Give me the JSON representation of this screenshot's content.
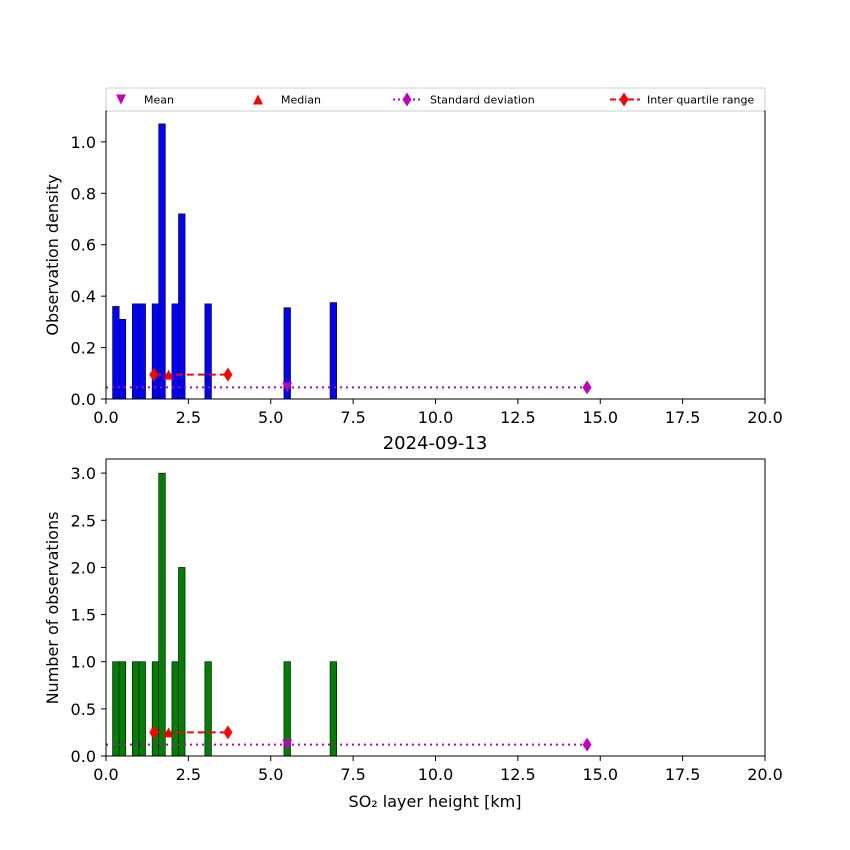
{
  "chart_data": [
    {
      "type": "bar",
      "title": "",
      "xlabel": "",
      "ylabel": "Observation density",
      "xlim": [
        0,
        20
      ],
      "ylim": [
        0,
        1.12
      ],
      "xticks": [
        0.0,
        2.5,
        5.0,
        7.5,
        10.0,
        12.5,
        15.0,
        17.5,
        20.0
      ],
      "xtick_labels": [
        "0.0",
        "2.5",
        "5.0",
        "7.5",
        "10.0",
        "12.5",
        "15.0",
        "17.5",
        "20.0"
      ],
      "yticks": [
        0.0,
        0.2,
        0.4,
        0.6,
        0.8,
        1.0
      ],
      "ytick_labels": [
        "0.0",
        "0.2",
        "0.4",
        "0.6",
        "0.8",
        "1.0"
      ],
      "bar_color": "#0000ff",
      "bar_width": 0.2,
      "bars": [
        {
          "x": 0.3,
          "y": 0.36
        },
        {
          "x": 0.5,
          "y": 0.31
        },
        {
          "x": 0.9,
          "y": 0.37
        },
        {
          "x": 1.1,
          "y": 0.37
        },
        {
          "x": 1.5,
          "y": 0.37
        },
        {
          "x": 1.7,
          "y": 1.07
        },
        {
          "x": 2.1,
          "y": 0.37
        },
        {
          "x": 2.3,
          "y": 0.72
        },
        {
          "x": 3.1,
          "y": 0.37
        },
        {
          "x": 5.5,
          "y": 0.355
        },
        {
          "x": 6.9,
          "y": 0.375
        }
      ],
      "stats": {
        "y_level": 0.045,
        "iqr_y_level": 0.095,
        "mean": 5.5,
        "median": 1.9,
        "std_range": [
          0.0,
          14.6
        ],
        "iqr_range": [
          1.45,
          3.7
        ]
      },
      "legend": {
        "placement": "top",
        "items": [
          {
            "label": "Mean",
            "marker": "triangle-down",
            "color": "#bf00bf"
          },
          {
            "label": "Median",
            "marker": "triangle-up",
            "color": "#ff0000"
          },
          {
            "label": "Standard deviation",
            "marker": "diamond",
            "line": "dotted",
            "color": "#bf00bf"
          },
          {
            "label": "Inter quartile range",
            "marker": "diamond",
            "line": "dashed",
            "color": "#ff0000"
          }
        ]
      }
    },
    {
      "type": "bar",
      "title": "2024-09-13",
      "xlabel": "SO₂ layer height [km]",
      "ylabel": "Number of observations",
      "xlim": [
        0,
        20
      ],
      "ylim": [
        0,
        3.15
      ],
      "xticks": [
        0.0,
        2.5,
        5.0,
        7.5,
        10.0,
        12.5,
        15.0,
        17.5,
        20.0
      ],
      "xtick_labels": [
        "0.0",
        "2.5",
        "5.0",
        "7.5",
        "10.0",
        "12.5",
        "15.0",
        "17.5",
        "20.0"
      ],
      "yticks": [
        0.0,
        0.5,
        1.0,
        1.5,
        2.0,
        2.5,
        3.0
      ],
      "ytick_labels": [
        "0.0",
        "0.5",
        "1.0",
        "1.5",
        "2.0",
        "2.5",
        "3.0"
      ],
      "bar_color": "#008000",
      "bar_width": 0.2,
      "bars": [
        {
          "x": 0.3,
          "y": 1
        },
        {
          "x": 0.5,
          "y": 1
        },
        {
          "x": 0.9,
          "y": 1
        },
        {
          "x": 1.1,
          "y": 1
        },
        {
          "x": 1.5,
          "y": 1
        },
        {
          "x": 1.7,
          "y": 3
        },
        {
          "x": 2.1,
          "y": 1
        },
        {
          "x": 2.3,
          "y": 2
        },
        {
          "x": 3.1,
          "y": 1
        },
        {
          "x": 5.5,
          "y": 1
        },
        {
          "x": 6.9,
          "y": 1
        }
      ],
      "stats": {
        "y_level": 0.12,
        "iqr_y_level": 0.25,
        "mean": 5.5,
        "median": 1.9,
        "std_range": [
          0.0,
          14.6
        ],
        "iqr_range": [
          1.45,
          3.7
        ]
      }
    }
  ]
}
